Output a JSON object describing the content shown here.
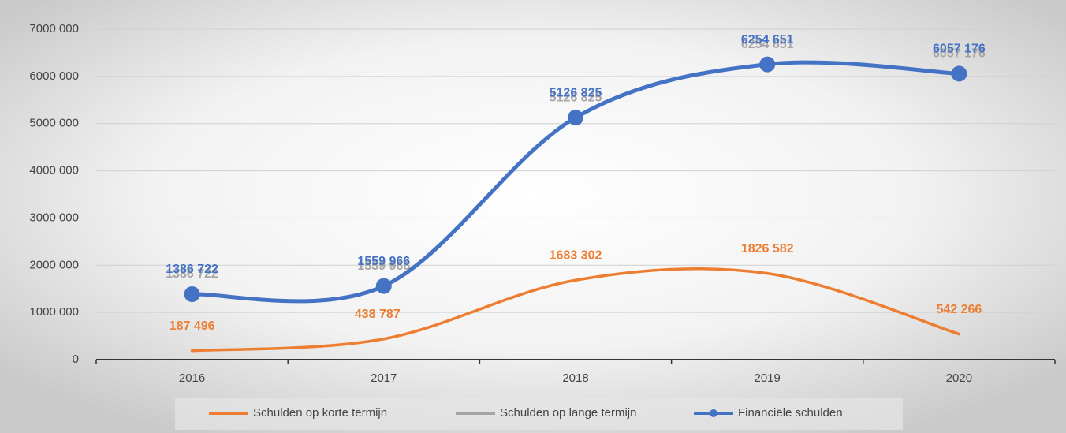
{
  "chart_data": {
    "type": "line",
    "smooth": true,
    "grid": true,
    "legend": "bottom",
    "categories": [
      "2016",
      "2017",
      "2018",
      "2019",
      "2020"
    ],
    "series": [
      {
        "name": "Schulden op korte termijn",
        "color": "#ed7d31",
        "markers": false,
        "values": [
          187496,
          438787,
          1683302,
          1826582,
          542266
        ],
        "value_labels": [
          "187 496",
          "438 787",
          "1683 302",
          "1826 582",
          "542 266"
        ]
      },
      {
        "name": "Schulden op lange termijn",
        "color": "#a5a5a5",
        "markers": false,
        "values": [
          1386722,
          1559966,
          5126825,
          6254651,
          6057176
        ],
        "value_labels": [
          "1386 722",
          "1559 966",
          "5126 825",
          "6254 651",
          "6057 176"
        ]
      },
      {
        "name": "Financiële schulden",
        "color": "#4472c4",
        "markers": true,
        "values": [
          1386722,
          1559966,
          5126825,
          6254651,
          6057176
        ],
        "value_labels": [
          "1386 722",
          "1559 966",
          "5126 825",
          "6254 651",
          "6057 176"
        ]
      }
    ],
    "ylim": [
      0,
      7000000
    ],
    "yticks": [
      0,
      {
        "value": 1000000,
        "label": "1000 000"
      },
      {
        "value": 2000000,
        "label": "2000 000"
      },
      {
        "value": 3000000,
        "label": "3000 000"
      },
      {
        "value": 4000000,
        "label": "4000 000"
      },
      {
        "value": 5000000,
        "label": "5000 000"
      },
      {
        "value": 6000000,
        "label": "6000 000"
      },
      {
        "value": 7000000,
        "label": "7000 000"
      }
    ]
  }
}
